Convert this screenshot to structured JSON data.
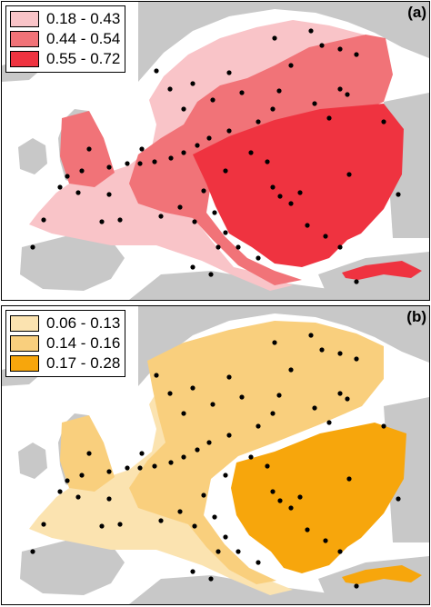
{
  "figure": {
    "panels": [
      {
        "label": "(a)",
        "legend": [
          {
            "label": "0.18 - 0.43",
            "color": "#f9c4c8"
          },
          {
            "label": "0.44 - 0.54",
            "color": "#f17378"
          },
          {
            "label": "0.55 - 0.72",
            "color": "#ef3340"
          }
        ]
      },
      {
        "label": "(b)",
        "legend": [
          {
            "label": "0.06 - 0.13",
            "color": "#fbe3b0"
          },
          {
            "label": "0.14 - 0.16",
            "color": "#f9cf7d"
          },
          {
            "label": "0.17 - 0.28",
            "color": "#f7a60c"
          }
        ]
      }
    ],
    "land_color": "#c8c8c8",
    "sea_color": "#ffffff",
    "site_color": "#000000"
  }
}
